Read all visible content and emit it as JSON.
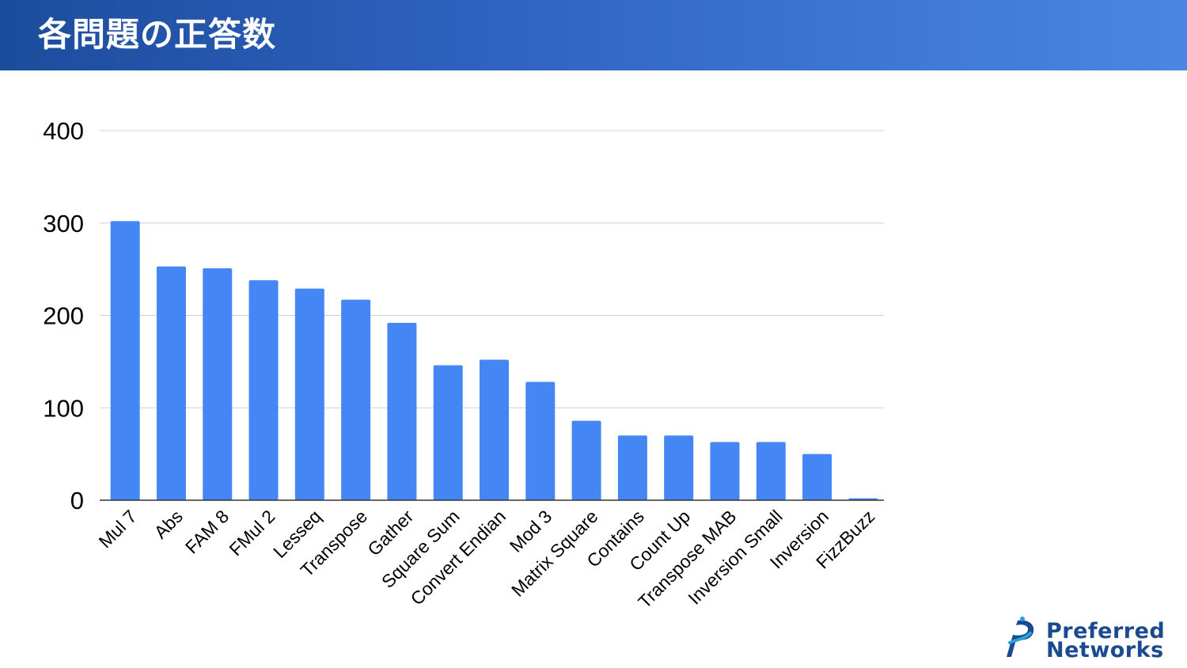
{
  "header": {
    "title": "各問題の正答数"
  },
  "logo": {
    "line1": "Preferred",
    "line2": "Networks"
  },
  "colors": {
    "bar": "#4486f4",
    "grid": "#d0d0d0",
    "axis": "#333333",
    "text": "#000000"
  },
  "chart_data": {
    "type": "bar",
    "title": "",
    "xlabel": "",
    "ylabel": "",
    "ylim": [
      0,
      400
    ],
    "yticks": [
      0,
      100,
      200,
      300,
      400
    ],
    "grid": true,
    "categories": [
      "Mul 7",
      "Abs",
      "FAM 8",
      "FMul 2",
      "Lesseq",
      "Transpose",
      "Gather",
      "Square Sum",
      "Convert Endian",
      "Mod 3",
      "Matrix Square",
      "Contains",
      "Count Up",
      "Transpose MAB",
      "Inversion Small",
      "Inversion",
      "FizzBuzz"
    ],
    "values": [
      302,
      253,
      251,
      238,
      229,
      217,
      192,
      146,
      152,
      128,
      86,
      70,
      70,
      63,
      63,
      50,
      2
    ]
  }
}
